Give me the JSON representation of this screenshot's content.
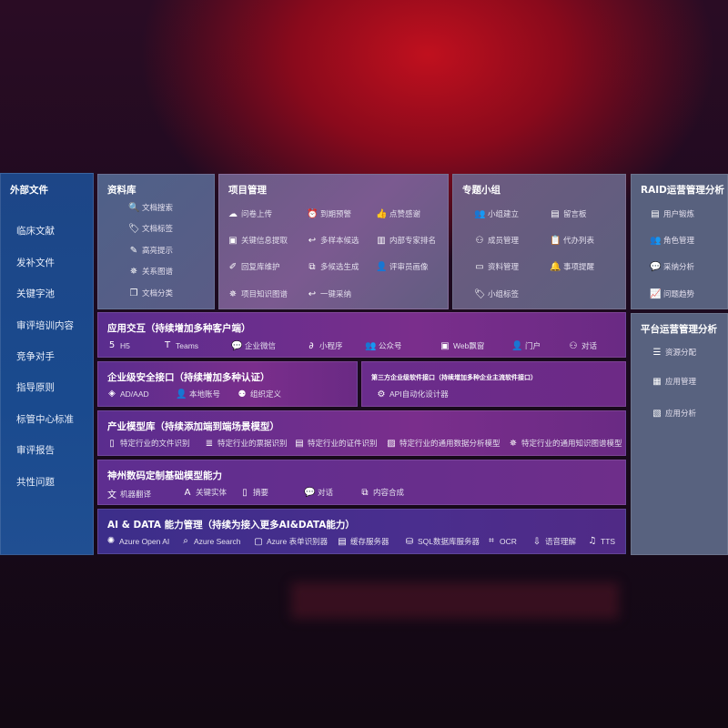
{
  "external_files": {
    "title": "外部文件",
    "items": [
      "临床文献",
      "发补文件",
      "关键字池",
      "审评培训内容",
      "竞争对手",
      "指导原则",
      "标管中心标准",
      "审评报告",
      "共性问题"
    ]
  },
  "library": {
    "title": "资料库",
    "items": [
      {
        "label": "文档搜索",
        "icon": "doc-search"
      },
      {
        "label": "文档标签",
        "icon": "tag"
      },
      {
        "label": "高亮提示",
        "icon": "pen"
      },
      {
        "label": "关系图谱",
        "icon": "graph"
      },
      {
        "label": "文档分类",
        "icon": "doc-stack"
      }
    ]
  },
  "project": {
    "title": "项目管理",
    "items": [
      {
        "label": "问卷上传",
        "icon": "cloud-upload"
      },
      {
        "label": "到期预警",
        "icon": "alarm"
      },
      {
        "label": "点赞感谢",
        "icon": "thumbs-up"
      },
      {
        "label": "关键信息提取",
        "icon": "window"
      },
      {
        "label": "多样本候选",
        "icon": "reply"
      },
      {
        "label": "内部专家排名",
        "icon": "ranking"
      },
      {
        "label": "回复库维护",
        "icon": "edit"
      },
      {
        "label": "多候选生成",
        "icon": "puzzle"
      },
      {
        "label": "评审员画像",
        "icon": "user"
      },
      {
        "label": "项目知识图谱",
        "icon": "graph"
      },
      {
        "label": "一键采纳",
        "icon": "reply"
      }
    ]
  },
  "group": {
    "title": "专题小组",
    "items": [
      {
        "label": "小组建立",
        "icon": "users"
      },
      {
        "label": "留言板",
        "icon": "bbs"
      },
      {
        "label": "成员管理",
        "icon": "user-add"
      },
      {
        "label": "代办列表",
        "icon": "clipboard"
      },
      {
        "label": "资料管理",
        "icon": "folder"
      },
      {
        "label": "事项提醒",
        "icon": "bell"
      },
      {
        "label": "小组标签",
        "icon": "tag"
      }
    ]
  },
  "raid": {
    "title": "RAID运营管理分析",
    "items": [
      {
        "label": "用户锻炼",
        "icon": "id-card"
      },
      {
        "label": "角色管理",
        "icon": "users"
      },
      {
        "label": "采纳分析",
        "icon": "qa"
      },
      {
        "label": "问题趋势",
        "icon": "trend"
      }
    ]
  },
  "platform": {
    "title": "平台运营管理分析",
    "items": [
      {
        "label": "资源分配",
        "icon": "checklist"
      },
      {
        "label": "应用管理",
        "icon": "apps"
      },
      {
        "label": "应用分析",
        "icon": "analysis"
      }
    ]
  },
  "app_interaction": {
    "title": "应用交互（持续增加多种客户端）",
    "items": [
      {
        "label": "H5",
        "icon": "html5"
      },
      {
        "label": "Teams",
        "icon": "teams"
      },
      {
        "label": "企业微信",
        "icon": "wechat-work"
      },
      {
        "label": "小程序",
        "icon": "mini-program"
      },
      {
        "label": "公众号",
        "icon": "users"
      },
      {
        "label": "Web飘窗",
        "icon": "window"
      },
      {
        "label": "门户",
        "icon": "portal"
      },
      {
        "label": "对话",
        "icon": "chat-users"
      }
    ]
  },
  "security": {
    "title": "企业级安全接口（持续增加多种认证）",
    "items": [
      {
        "label": "AD/AAD",
        "icon": "diamond"
      },
      {
        "label": "本地账号",
        "icon": "user"
      },
      {
        "label": "组织定义",
        "icon": "org"
      }
    ]
  },
  "third_party": {
    "title": "第三方企业级软件接口（持续增加多种企业主流软件接口）",
    "items": [
      {
        "label": "API自动化设计器",
        "icon": "gear"
      }
    ]
  },
  "industry": {
    "title": "产业模型库（持续添加端到端场景模型）",
    "items": [
      {
        "label": "特定行业的文件识别",
        "icon": "doc"
      },
      {
        "label": "特定行业的票据识别",
        "icon": "receipt"
      },
      {
        "label": "特定行业的证件识别",
        "icon": "id-card"
      },
      {
        "label": "特定行业的通用数据分析模型",
        "icon": "chart"
      },
      {
        "label": "特定行业的通用知识图谱模型",
        "icon": "graph"
      }
    ]
  },
  "foundation": {
    "title": "神州数码定制基础模型能力",
    "items": [
      {
        "label": "机器翻译",
        "icon": "translate"
      },
      {
        "label": "关键实体",
        "icon": "entity"
      },
      {
        "label": "摘要",
        "icon": "doc"
      },
      {
        "label": "对话",
        "icon": "chat"
      },
      {
        "label": "内容合成",
        "icon": "puzzle"
      }
    ]
  },
  "ai_data": {
    "title": "AI & DATA 能力管理（持续为接入更多AI&DATA能力）",
    "items": [
      {
        "label": "Azure Open AI",
        "icon": "openai"
      },
      {
        "label": "Azure Search",
        "icon": "search"
      },
      {
        "label": "Azure 表单识别器",
        "icon": "form"
      },
      {
        "label": "缓存服务器",
        "icon": "server"
      },
      {
        "label": "SQL数据库服务器",
        "icon": "database"
      },
      {
        "label": "OCR",
        "icon": "ocr"
      },
      {
        "label": "语音理解",
        "icon": "speech"
      },
      {
        "label": "TTS",
        "icon": "tts"
      }
    ]
  },
  "colors": {
    "left": "#1d4687",
    "purple": "#6a2d8a",
    "ai_data": "#4a2f8a",
    "gray_panel": "#5c5f80"
  }
}
